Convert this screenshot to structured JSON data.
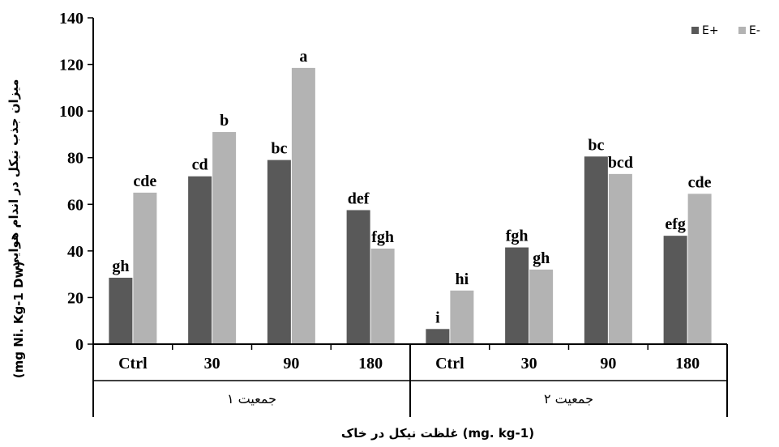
{
  "chart_data": {
    "type": "bar",
    "title": "",
    "ylabel_fa": "میزان جذب نیکل در اندام هوایی",
    "ylabel_unit": "(mg Ni. Kg-1 Dw)",
    "xlabel": "غلظت نیکل در خاک (mg. kg-1)",
    "ylim": [
      0,
      140
    ],
    "yticks": [
      "0",
      "20",
      "40",
      "60",
      "80",
      "100",
      "120",
      "140"
    ],
    "groups": [
      "جمعیت ۱",
      "جمعیت ۲"
    ],
    "categories": [
      "Ctrl",
      "30",
      "90",
      "180",
      "Ctrl",
      "30",
      "90",
      "180"
    ],
    "legend_position": "top-right",
    "series": [
      {
        "name": "E+",
        "color": "#595959",
        "values": [
          28.5,
          72,
          79,
          57.5,
          6.5,
          41.5,
          80.5,
          46.5
        ],
        "labels": [
          "gh",
          "cd",
          "bc",
          "def",
          "i",
          "fgh",
          "bc",
          "efg"
        ]
      },
      {
        "name": "E-",
        "color": "#b3b3b3",
        "values": [
          65,
          91,
          118.5,
          41,
          23,
          32,
          73,
          64.5
        ],
        "labels": [
          "cde",
          "b",
          "a",
          "fgh",
          "hi",
          "gh",
          "bcd",
          "cde"
        ]
      }
    ]
  }
}
